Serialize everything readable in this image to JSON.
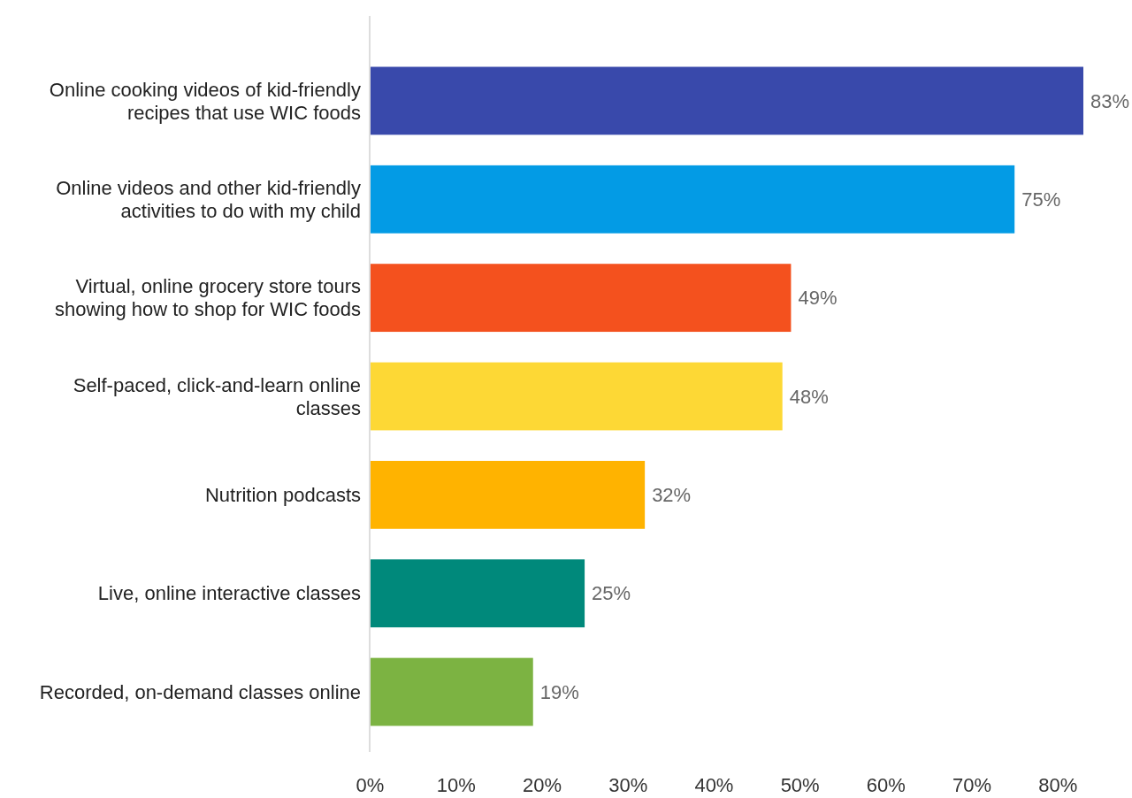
{
  "chart_data": {
    "type": "bar",
    "orientation": "horizontal",
    "categories": [
      "Online cooking videos of kid-friendly recipes that use WIC foods",
      "Online videos and other kid-friendly activities to do with my child",
      "Virtual, online grocery store tours showing how to shop for WIC foods",
      "Self-paced, click-and-learn online classes",
      "Nutrition podcasts",
      "Live, online interactive classes",
      "Recorded, on-demand classes online"
    ],
    "values": [
      83,
      75,
      49,
      48,
      32,
      25,
      19
    ],
    "value_labels": [
      "83%",
      "75%",
      "49%",
      "48%",
      "32%",
      "25%",
      "19%"
    ],
    "colors": [
      "#3949ab",
      "#039be5",
      "#f4511e",
      "#fdd835",
      "#ffb300",
      "#00897b",
      "#7cb342"
    ],
    "xticks": [
      {
        "value": 0,
        "label": "0%"
      },
      {
        "value": 10,
        "label": "10%"
      },
      {
        "value": 20,
        "label": "20%"
      },
      {
        "value": 30,
        "label": "30%"
      },
      {
        "value": 40,
        "label": "40%"
      },
      {
        "value": 50,
        "label": "50%"
      },
      {
        "value": 60,
        "label": "60%"
      },
      {
        "value": 70,
        "label": "70%"
      },
      {
        "value": 80,
        "label": "80%"
      }
    ],
    "xlim": [
      0,
      83
    ],
    "grid": false
  }
}
